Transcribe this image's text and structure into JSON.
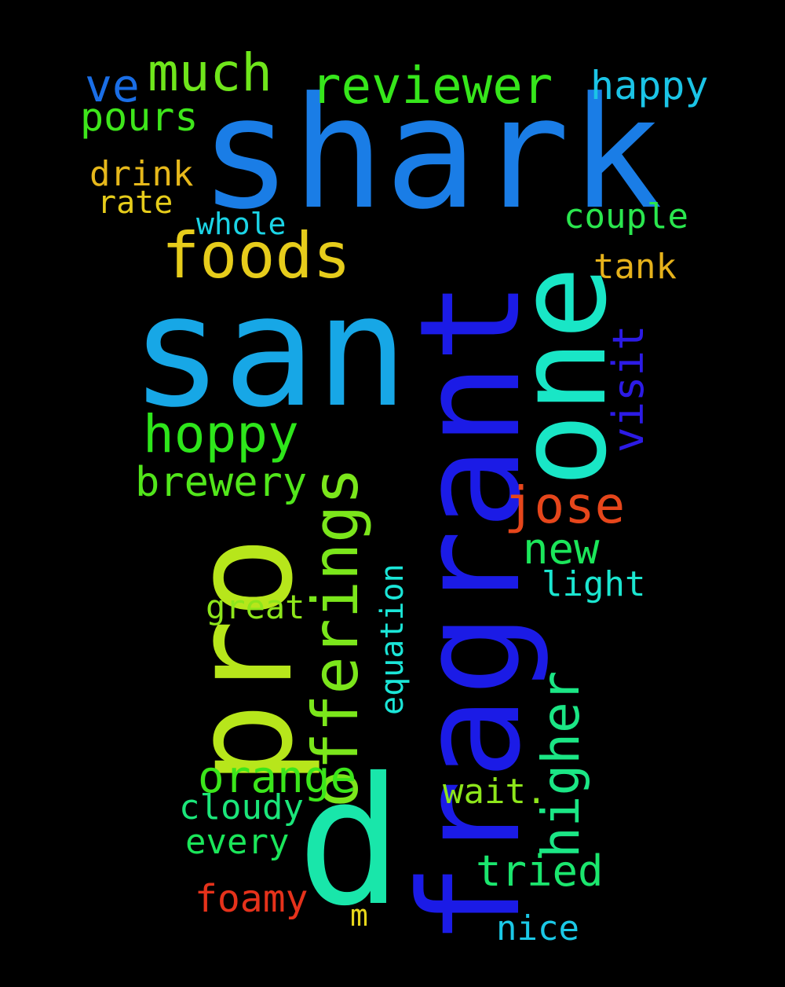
{
  "background": "#000000",
  "words": [
    {
      "text": "shark",
      "color": "#1a7de6"
    },
    {
      "text": "san",
      "color": "#17a7e6"
    },
    {
      "text": "fragrant",
      "color": "#1b1be6"
    },
    {
      "text": "one",
      "color": "#19e6c6"
    },
    {
      "text": "pro",
      "color": "#b7e61b"
    },
    {
      "text": "d",
      "color": "#19e6aa"
    },
    {
      "text": "offerings",
      "color": "#7be61b"
    },
    {
      "text": "foods",
      "color": "#e6cc1b"
    },
    {
      "text": "reviewer",
      "color": "#36e61b"
    },
    {
      "text": "much",
      "color": "#6fe61b"
    },
    {
      "text": "ve",
      "color": "#1a6ee6"
    },
    {
      "text": "happy",
      "color": "#1bc4e6"
    },
    {
      "text": "pours",
      "color": "#3ee61b"
    },
    {
      "text": "drink",
      "color": "#e6b81b"
    },
    {
      "text": "rate",
      "color": "#e6cc1b"
    },
    {
      "text": "whole",
      "color": "#1bd4e6"
    },
    {
      "text": "couple",
      "color": "#2ae64e"
    },
    {
      "text": "tank",
      "color": "#e6b21b"
    },
    {
      "text": "visit",
      "color": "#2c1be6"
    },
    {
      "text": "hoppy",
      "color": "#2ee61b"
    },
    {
      "text": "brewery",
      "color": "#52e61b"
    },
    {
      "text": "jose",
      "color": "#e6461b"
    },
    {
      "text": "new",
      "color": "#1be65a"
    },
    {
      "text": "light",
      "color": "#1be6d0"
    },
    {
      "text": "great",
      "color": "#8ee61b"
    },
    {
      "text": "equation",
      "color": "#1be6d8"
    },
    {
      "text": "higher",
      "color": "#1be685"
    },
    {
      "text": "orange",
      "color": "#3be61b"
    },
    {
      "text": "wait.",
      "color": "#8ee61b"
    },
    {
      "text": "cloudy",
      "color": "#1be67a"
    },
    {
      "text": "every",
      "color": "#1be65a"
    },
    {
      "text": "tried",
      "color": "#1be66e"
    },
    {
      "text": "foamy",
      "color": "#e6321b"
    },
    {
      "text": "m",
      "color": "#e6d61b"
    },
    {
      "text": "nice",
      "color": "#1bc8e6"
    }
  ]
}
